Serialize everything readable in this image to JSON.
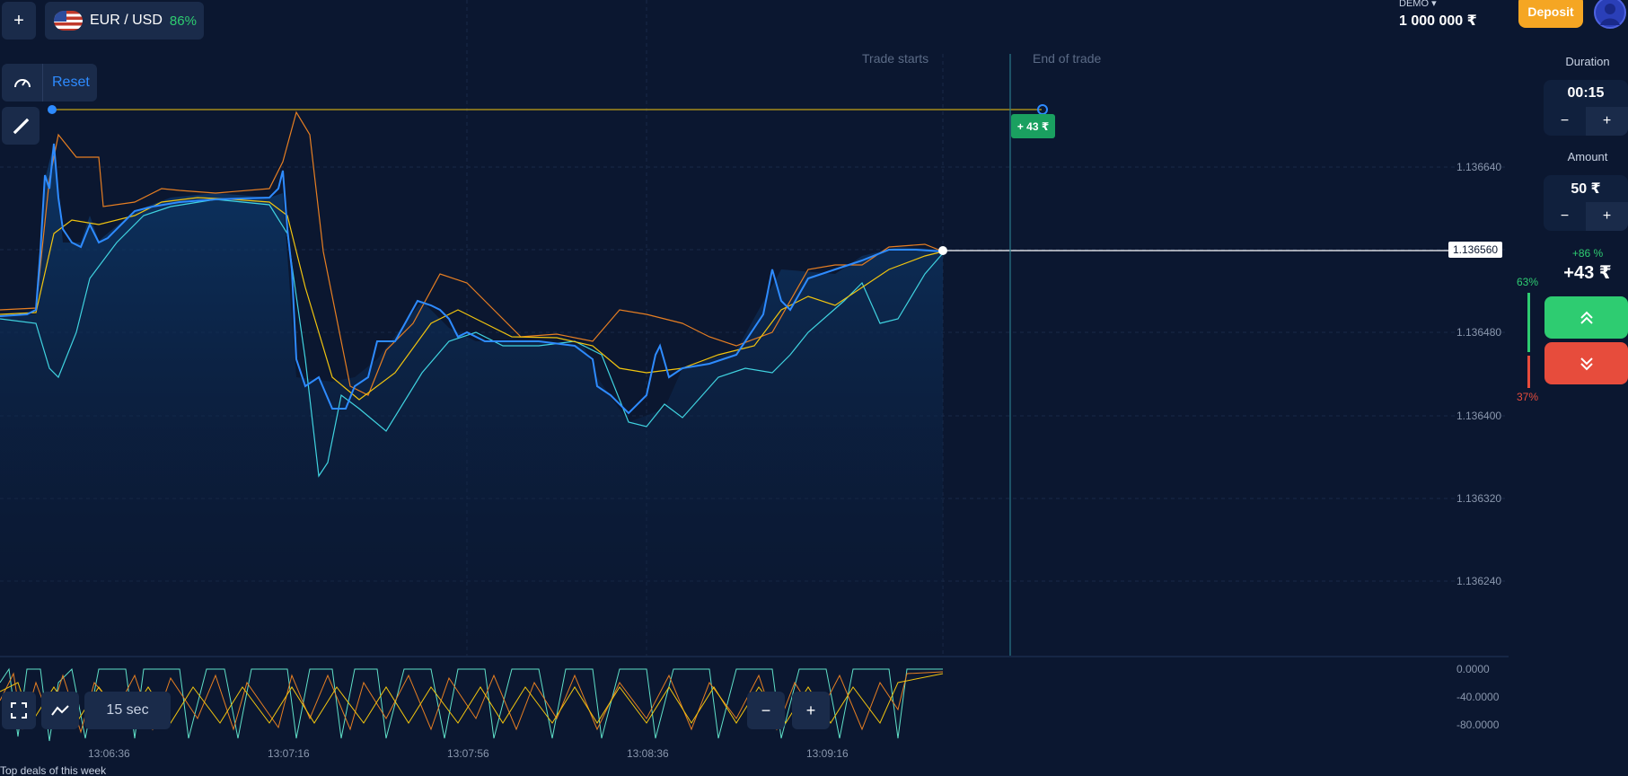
{
  "header": {
    "add_label": "+",
    "asset": "EUR / USD",
    "payout": "86%",
    "account_type": "DEMO",
    "balance": "1 000 000 ₹",
    "deposit_label": "Deposit"
  },
  "tools": {
    "reset_label": "Reset"
  },
  "markers": {
    "trade_starts": "Trade starts",
    "end_of_trade": "End of trade",
    "profit_badge": "+ 43 ₹"
  },
  "price": {
    "current": "1.136560",
    "levels": [
      "1.136640",
      "1.136480",
      "1.136400",
      "1.136320",
      "1.136240"
    ]
  },
  "oscillator": {
    "levels": [
      "0.0000",
      "-40.0000",
      "-80.0000"
    ]
  },
  "time_axis": [
    "13:06:36",
    "13:07:16",
    "13:07:56",
    "13:08:36",
    "13:09:16"
  ],
  "bottom_controls": {
    "timeframe": "15 sec",
    "zoom_out": "−",
    "zoom_in": "+"
  },
  "footer": {
    "top_deals": "Top deals of this week"
  },
  "trade_panel": {
    "duration_label": "Duration",
    "duration_value": "00:15",
    "amount_label": "Amount",
    "amount_value": "50 ₹",
    "minus": "−",
    "plus": "+",
    "profit_percent": "+86 %",
    "profit_value": "+43 ₹",
    "up_percent": "63%",
    "down_percent": "37%"
  },
  "colors": {
    "accent": "#2e8bff",
    "up": "#2ecc71",
    "down": "#e74c3c",
    "deposit": "#f5a623"
  }
}
